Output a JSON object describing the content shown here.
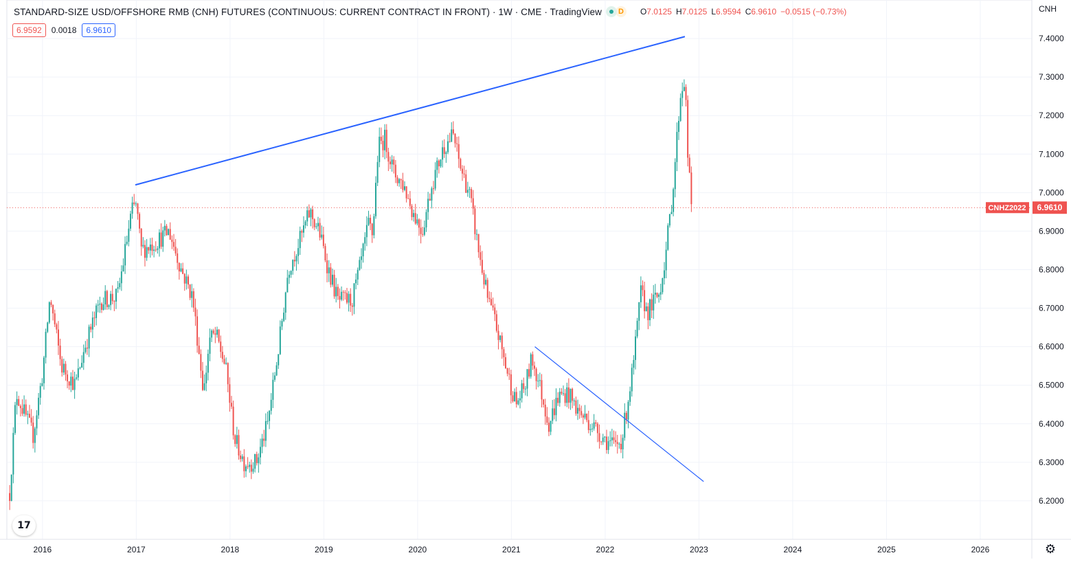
{
  "header": {
    "title": "STANDARD-SIZE USD/OFFSHORE RMB (CNH) FUTURES (CONTINUOUS: CURRENT CONTRACT IN FRONT) · 1W · CME · TradingView",
    "status_d": "D",
    "o_label": "O",
    "o_value": "7.0125",
    "h_label": "H",
    "h_value": "7.0125",
    "l_label": "L",
    "l_value": "6.9594",
    "c_label": "C",
    "c_value": "6.9610",
    "change": "−0.0515 (−0.73%)"
  },
  "bidask": {
    "bid": "6.9592",
    "spread": "0.0018",
    "ask": "6.9610"
  },
  "logo_text": "17",
  "colors": {
    "up": "#26a69a",
    "down": "#ef5350",
    "trend": "#2962ff",
    "grid": "#f0f3fa",
    "text": "#131722",
    "price_line": "#ef5350"
  },
  "chart_data": {
    "type": "candlestick",
    "title": "STANDARD-SIZE USD/OFFSHORE RMB (CNH) FUTURES (CONTINUOUS: CURRENT CONTRACT IN FRONT)",
    "interval": "1W",
    "exchange": "CME",
    "currency": "CNH",
    "xlim": [
      2015.62,
      2026.55
    ],
    "ylim": [
      6.1,
      7.5
    ],
    "y_ticks": [
      "7.4000",
      "7.3000",
      "7.2000",
      "7.1000",
      "7.0000",
      "6.9000",
      "6.8000",
      "6.7000",
      "6.6000",
      "6.5000",
      "6.4000",
      "6.3000",
      "6.2000"
    ],
    "x_ticks": [
      {
        "label": "2016",
        "x": 2016.0
      },
      {
        "label": "2017",
        "x": 2017.0
      },
      {
        "label": "2018",
        "x": 2018.0
      },
      {
        "label": "2019",
        "x": 2019.0
      },
      {
        "label": "2020",
        "x": 2020.0
      },
      {
        "label": "2021",
        "x": 2021.0
      },
      {
        "label": "2022",
        "x": 2022.0
      },
      {
        "label": "2023",
        "x": 2023.0
      },
      {
        "label": "2024",
        "x": 2024.0
      },
      {
        "label": "2025",
        "x": 2025.0
      },
      {
        "label": "2026",
        "x": 2026.0
      }
    ],
    "anchors": [
      [
        2015.65,
        6.22
      ],
      [
        2015.72,
        6.48
      ],
      [
        2015.9,
        6.37
      ],
      [
        2016.0,
        6.53
      ],
      [
        2016.08,
        6.73
      ],
      [
        2016.2,
        6.55
      ],
      [
        2016.35,
        6.5
      ],
      [
        2016.45,
        6.6
      ],
      [
        2016.62,
        6.72
      ],
      [
        2016.8,
        6.73
      ],
      [
        2016.95,
        6.95
      ],
      [
        2017.0,
        6.97
      ],
      [
        2017.05,
        6.85
      ],
      [
        2017.2,
        6.87
      ],
      [
        2017.35,
        6.9
      ],
      [
        2017.48,
        6.8
      ],
      [
        2017.6,
        6.73
      ],
      [
        2017.72,
        6.48
      ],
      [
        2017.78,
        6.62
      ],
      [
        2017.85,
        6.63
      ],
      [
        2017.95,
        6.55
      ],
      [
        2018.05,
        6.36
      ],
      [
        2018.15,
        6.3
      ],
      [
        2018.28,
        6.3
      ],
      [
        2018.4,
        6.4
      ],
      [
        2018.52,
        6.6
      ],
      [
        2018.62,
        6.8
      ],
      [
        2018.75,
        6.88
      ],
      [
        2018.85,
        6.95
      ],
      [
        2018.95,
        6.9
      ],
      [
        2019.05,
        6.8
      ],
      [
        2019.15,
        6.72
      ],
      [
        2019.3,
        6.72
      ],
      [
        2019.38,
        6.8
      ],
      [
        2019.48,
        6.92
      ],
      [
        2019.52,
        6.89
      ],
      [
        2019.58,
        7.12
      ],
      [
        2019.65,
        7.14
      ],
      [
        2019.75,
        7.05
      ],
      [
        2019.85,
        7.02
      ],
      [
        2019.95,
        6.95
      ],
      [
        2020.05,
        6.9
      ],
      [
        2020.15,
        7.02
      ],
      [
        2020.28,
        7.12
      ],
      [
        2020.38,
        7.15
      ],
      [
        2020.45,
        7.07
      ],
      [
        2020.55,
        7.0
      ],
      [
        2020.65,
        6.85
      ],
      [
        2020.75,
        6.72
      ],
      [
        2020.82,
        6.67
      ],
      [
        2020.95,
        6.54
      ],
      [
        2021.05,
        6.45
      ],
      [
        2021.15,
        6.5
      ],
      [
        2021.22,
        6.57
      ],
      [
        2021.3,
        6.5
      ],
      [
        2021.4,
        6.4
      ],
      [
        2021.5,
        6.47
      ],
      [
        2021.6,
        6.48
      ],
      [
        2021.72,
        6.43
      ],
      [
        2021.85,
        6.4
      ],
      [
        2022.0,
        6.36
      ],
      [
        2022.1,
        6.34
      ],
      [
        2022.18,
        6.36
      ],
      [
        2022.3,
        6.55
      ],
      [
        2022.38,
        6.74
      ],
      [
        2022.45,
        6.69
      ],
      [
        2022.58,
        6.74
      ],
      [
        2022.65,
        6.85
      ],
      [
        2022.72,
        7.0
      ],
      [
        2022.8,
        7.25
      ],
      [
        2022.85,
        7.3
      ],
      [
        2022.88,
        7.1
      ],
      [
        2022.92,
        6.96
      ]
    ],
    "trendlines": [
      {
        "x1": 2016.99,
        "y1": 7.02,
        "x2": 2022.85,
        "y2": 7.405
      },
      {
        "x1": 2021.25,
        "y1": 6.6,
        "x2": 2023.05,
        "y2": 6.25
      }
    ],
    "last_price": {
      "symbol": "CNHZ2022",
      "value": "6.9610",
      "y": 6.961
    },
    "axis_currency_label": "CNH"
  }
}
